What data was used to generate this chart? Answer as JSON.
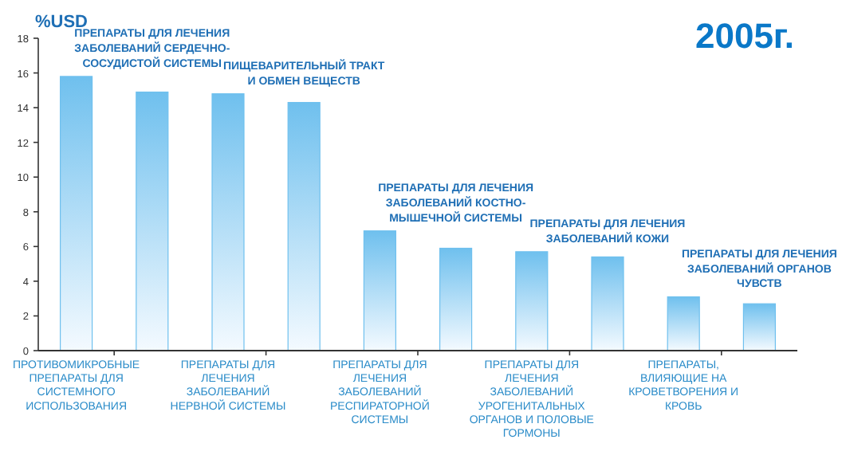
{
  "chart_data": {
    "type": "bar",
    "title": "2005г.",
    "ylabel": "%USD",
    "categories": [
      "ПРОТИВОМИКРОБНЫЕ ПРЕПАРАТЫ ДЛЯ СИСТЕМНОГО ИСПОЛЬЗОВАНИЯ",
      "ПРЕПАРАТЫ ДЛЯ ЛЕЧЕНИЯ ЗАБОЛЕВАНИЙ СЕРДЕЧНО-СОСУДИСТОЙ СИСТЕМЫ",
      "ПРЕПАРАТЫ ДЛЯ ЛЕЧЕНИЯ ЗАБОЛЕВАНИЙ НЕРВНОЙ СИСТЕМЫ",
      "ПИЩЕВАРИТЕЛЬНЫЙ ТРАКТ И ОБМЕН ВЕЩЕСТВ",
      "ПРЕПАРАТЫ ДЛЯ ЛЕЧЕНИЯ ЗАБОЛЕВАНИЙ РЕСПИРАТОРНОЙ СИСТЕМЫ",
      "ПРЕПАРАТЫ ДЛЯ ЛЕЧЕНИЯ ЗАБОЛЕВАНИЙ КОСТНО-МЫШЕЧНОЙ СИСТЕМЫ",
      "ПРЕПАРАТЫ ДЛЯ ЛЕЧЕНИЯ ЗАБОЛЕВАНИЙ УРОГЕНИТАЛЬНЫХ ОРГАНОВ И ПОЛОВЫЕ ГОРМОНЫ",
      "ПРЕПАРАТЫ ДЛЯ ЛЕЧЕНИЯ ЗАБОЛЕВАНИЙ КОЖИ",
      "ПРЕПАРАТЫ, ВЛИЯЮЩИЕ НА КРОВЕТВОРЕНИЯ И КРОВЬ",
      "ПРЕПАРАТЫ ДЛЯ ЛЕЧЕНИЯ ЗАБОЛЕВАНИЙ ОРГАНОВ ЧУВСТВ"
    ],
    "values": [
      15.8,
      14.9,
      14.8,
      14.3,
      6.9,
      5.9,
      5.7,
      5.4,
      3.1,
      2.7
    ],
    "color": "#6fc0ee",
    "ylim": [
      0,
      18
    ],
    "yticks": [
      0,
      2,
      4,
      6,
      8,
      10,
      12,
      14,
      16,
      18
    ],
    "grid": false
  }
}
